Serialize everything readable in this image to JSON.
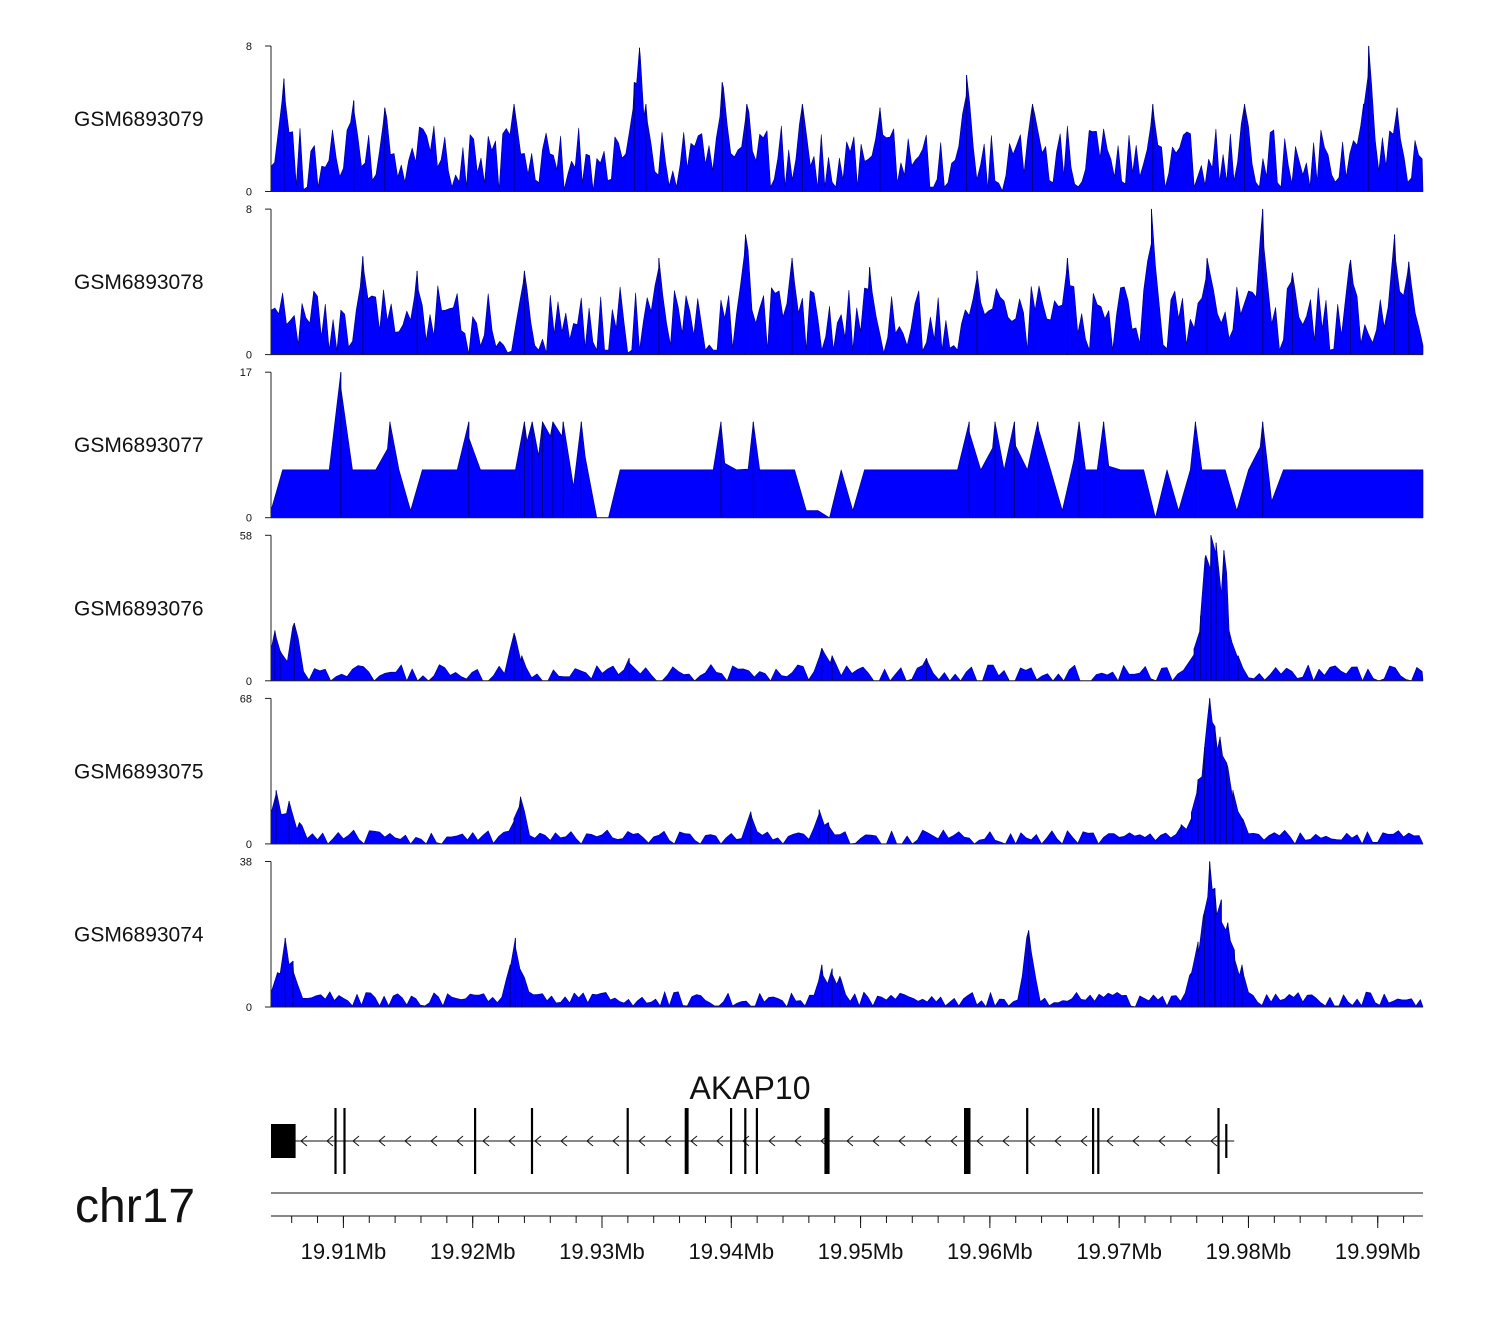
{
  "chart_data": {
    "type": "area",
    "chromosome": "chr17",
    "xlim": [
      19.9044,
      19.9935
    ],
    "x_unit": "Mb",
    "x_ticks": [
      19.91,
      19.92,
      19.93,
      19.94,
      19.95,
      19.96,
      19.97,
      19.98,
      19.99
    ],
    "x_tick_labels": [
      "19.91Mb",
      "19.92Mb",
      "19.93Mb",
      "19.94Mb",
      "19.95Mb",
      "19.96Mb",
      "19.97Mb",
      "19.98Mb",
      "19.99Mb"
    ],
    "fill_color": "#0000ff",
    "edge_color": "#000080",
    "tracks": [
      {
        "name": "GSM6893079",
        "ylim": [
          0,
          8
        ],
        "y_tick_labels": [
          "0",
          "8"
        ],
        "baseline": 0.25,
        "spacing_kb": 0.28,
        "density": 0.9,
        "level_low": 0.4,
        "level_high": 3.6,
        "peaks": [
          {
            "pos": 19.9054,
            "height": 6.2
          },
          {
            "pos": 19.9108,
            "height": 5.0
          },
          {
            "pos": 19.9132,
            "height": 4.6
          },
          {
            "pos": 19.9232,
            "height": 4.8
          },
          {
            "pos": 19.9329,
            "height": 7.9
          },
          {
            "pos": 19.9325,
            "height": 6.0
          },
          {
            "pos": 19.9334,
            "height": 4.8
          },
          {
            "pos": 19.9393,
            "height": 6.0
          },
          {
            "pos": 19.9412,
            "height": 4.8
          },
          {
            "pos": 19.9455,
            "height": 4.8
          },
          {
            "pos": 19.9515,
            "height": 4.6
          },
          {
            "pos": 19.9582,
            "height": 6.4
          },
          {
            "pos": 19.9633,
            "height": 4.8
          },
          {
            "pos": 19.9726,
            "height": 4.8
          },
          {
            "pos": 19.9797,
            "height": 4.8
          },
          {
            "pos": 19.9893,
            "height": 8.0
          },
          {
            "pos": 19.9889,
            "height": 4.8
          },
          {
            "pos": 19.9915,
            "height": 4.6
          }
        ]
      },
      {
        "name": "GSM6893078",
        "ylim": [
          0,
          8
        ],
        "y_tick_labels": [
          "0",
          "8"
        ],
        "baseline": 0.25,
        "spacing_kb": 0.3,
        "density": 0.9,
        "level_low": 0.5,
        "level_high": 3.8,
        "peaks": [
          {
            "pos": 19.9115,
            "height": 5.4
          },
          {
            "pos": 19.9157,
            "height": 4.6
          },
          {
            "pos": 19.924,
            "height": 4.6
          },
          {
            "pos": 19.9344,
            "height": 5.3
          },
          {
            "pos": 19.9411,
            "height": 6.6
          },
          {
            "pos": 19.9447,
            "height": 5.3
          },
          {
            "pos": 19.9507,
            "height": 4.8
          },
          {
            "pos": 19.959,
            "height": 4.6
          },
          {
            "pos": 19.966,
            "height": 5.3
          },
          {
            "pos": 19.9725,
            "height": 8.0
          },
          {
            "pos": 19.9768,
            "height": 5.3
          },
          {
            "pos": 19.9811,
            "height": 8.0
          },
          {
            "pos": 19.9834,
            "height": 4.5
          },
          {
            "pos": 19.9879,
            "height": 5.2
          },
          {
            "pos": 19.9913,
            "height": 6.6
          },
          {
            "pos": 19.9924,
            "height": 5.1
          }
        ]
      },
      {
        "name": "GSM6893077",
        "ylim": [
          0,
          17
        ],
        "y_tick_labels": [
          "0",
          "17"
        ],
        "baseline": 0.0,
        "spacing_kb": 0.9,
        "density": 0.95,
        "level_low": 5.6,
        "level_high": 5.6,
        "peaks": [
          {
            "pos": 19.9098,
            "height": 17.0
          },
          {
            "pos": 19.9136,
            "height": 11.2
          },
          {
            "pos": 19.9197,
            "height": 11.2
          },
          {
            "pos": 19.924,
            "height": 11.2
          },
          {
            "pos": 19.9246,
            "height": 11.2
          },
          {
            "pos": 19.9254,
            "height": 11.2
          },
          {
            "pos": 19.9262,
            "height": 11.2
          },
          {
            "pos": 19.927,
            "height": 11.2
          },
          {
            "pos": 19.9284,
            "height": 11.2
          },
          {
            "pos": 19.9392,
            "height": 11.2
          },
          {
            "pos": 19.9417,
            "height": 11.2
          },
          {
            "pos": 19.9584,
            "height": 11.2
          },
          {
            "pos": 19.9604,
            "height": 11.2
          },
          {
            "pos": 19.9619,
            "height": 11.2
          },
          {
            "pos": 19.9637,
            "height": 11.2
          },
          {
            "pos": 19.9669,
            "height": 11.2
          },
          {
            "pos": 19.9688,
            "height": 11.2
          },
          {
            "pos": 19.9759,
            "height": 11.2
          },
          {
            "pos": 19.9811,
            "height": 11.2
          }
        ]
      },
      {
        "name": "GSM6893076",
        "ylim": [
          0,
          58
        ],
        "y_tick_labels": [
          "0",
          "58"
        ],
        "baseline": 0.0,
        "spacing_kb": 0.42,
        "density": 0.8,
        "level_low": 1.5,
        "level_high": 6.5,
        "peaks": [
          {
            "pos": 19.9047,
            "height": 20.0
          },
          {
            "pos": 19.9062,
            "height": 23.0
          },
          {
            "pos": 19.9051,
            "height": 12.0
          },
          {
            "pos": 19.9232,
            "height": 19.0
          },
          {
            "pos": 19.9238,
            "height": 10.0
          },
          {
            "pos": 19.9321,
            "height": 9.0
          },
          {
            "pos": 19.947,
            "height": 13.0
          },
          {
            "pos": 19.9478,
            "height": 10.0
          },
          {
            "pos": 19.9551,
            "height": 9.0
          },
          {
            "pos": 19.9771,
            "height": 58.0
          },
          {
            "pos": 19.9775,
            "height": 55.0
          },
          {
            "pos": 19.9767,
            "height": 50.0
          },
          {
            "pos": 19.9781,
            "height": 52.0
          },
          {
            "pos": 19.9763,
            "height": 26.0
          },
          {
            "pos": 19.9785,
            "height": 20.0
          },
          {
            "pos": 19.9758,
            "height": 13.0
          },
          {
            "pos": 19.9792,
            "height": 10.0
          }
        ]
      },
      {
        "name": "GSM6893075",
        "ylim": [
          0,
          68
        ],
        "y_tick_labels": [
          "0",
          "68"
        ],
        "baseline": 0.0,
        "spacing_kb": 0.4,
        "density": 0.8,
        "level_low": 1.5,
        "level_high": 6.5,
        "peaks": [
          {
            "pos": 19.9048,
            "height": 25.0
          },
          {
            "pos": 19.9058,
            "height": 20.0
          },
          {
            "pos": 19.9066,
            "height": 10.0
          },
          {
            "pos": 19.9237,
            "height": 22.0
          },
          {
            "pos": 19.9232,
            "height": 12.0
          },
          {
            "pos": 19.9415,
            "height": 15.0
          },
          {
            "pos": 19.9468,
            "height": 16.0
          },
          {
            "pos": 19.9475,
            "height": 10.0
          },
          {
            "pos": 19.977,
            "height": 68.0
          },
          {
            "pos": 19.9774,
            "height": 55.0
          },
          {
            "pos": 19.9778,
            "height": 50.0
          },
          {
            "pos": 19.9766,
            "height": 45.0
          },
          {
            "pos": 19.9783,
            "height": 38.0
          },
          {
            "pos": 19.9761,
            "height": 30.0
          },
          {
            "pos": 19.9788,
            "height": 25.0
          },
          {
            "pos": 19.9756,
            "height": 15.0
          },
          {
            "pos": 19.9795,
            "height": 12.0
          },
          {
            "pos": 19.9748,
            "height": 9.0
          }
        ]
      },
      {
        "name": "GSM6893074",
        "ylim": [
          0,
          38
        ],
        "y_tick_labels": [
          "0",
          "38"
        ],
        "baseline": 0.3,
        "spacing_kb": 0.35,
        "density": 0.85,
        "level_low": 1.0,
        "level_high": 4.0,
        "peaks": [
          {
            "pos": 19.9055,
            "height": 18.0
          },
          {
            "pos": 19.9049,
            "height": 9.0
          },
          {
            "pos": 19.9061,
            "height": 12.0
          },
          {
            "pos": 19.9233,
            "height": 18.0
          },
          {
            "pos": 19.9229,
            "height": 11.0
          },
          {
            "pos": 19.9238,
            "height": 9.0
          },
          {
            "pos": 19.947,
            "height": 11.0
          },
          {
            "pos": 19.9478,
            "height": 10.0
          },
          {
            "pos": 19.9484,
            "height": 8.0
          },
          {
            "pos": 19.963,
            "height": 20.0
          },
          {
            "pos": 19.977,
            "height": 38.0
          },
          {
            "pos": 19.9774,
            "height": 31.0
          },
          {
            "pos": 19.9779,
            "height": 28.0
          },
          {
            "pos": 19.9766,
            "height": 25.0
          },
          {
            "pos": 19.9784,
            "height": 22.0
          },
          {
            "pos": 19.9761,
            "height": 17.0
          },
          {
            "pos": 19.9789,
            "height": 15.0
          },
          {
            "pos": 19.9795,
            "height": 11.0
          },
          {
            "pos": 19.9756,
            "height": 9.0
          }
        ]
      }
    ],
    "gene": {
      "name": "AKAP10",
      "strand": "-",
      "start": 19.9044,
      "end": 19.9789,
      "exons": [
        {
          "start": 19.9044,
          "end": 19.9063,
          "thick": true
        },
        {
          "start": 19.9093,
          "end": 19.9094
        },
        {
          "start": 19.91,
          "end": 19.9101
        },
        {
          "start": 19.9201,
          "end": 19.9202
        },
        {
          "start": 19.9245,
          "end": 19.9246
        },
        {
          "start": 19.9319,
          "end": 19.932
        },
        {
          "start": 19.9364,
          "end": 19.9367,
          "thick": true
        },
        {
          "start": 19.9399,
          "end": 19.94
        },
        {
          "start": 19.941,
          "end": 19.9411
        },
        {
          "start": 19.9419,
          "end": 19.942
        },
        {
          "start": 19.9472,
          "end": 19.9476,
          "thick": true
        },
        {
          "start": 19.958,
          "end": 19.9585,
          "thick": true
        },
        {
          "start": 19.9628,
          "end": 19.9629
        },
        {
          "start": 19.9679,
          "end": 19.968
        },
        {
          "start": 19.9683,
          "end": 19.9684
        },
        {
          "start": 19.9776,
          "end": 19.9777
        },
        {
          "start": 19.9782,
          "end": 19.9783,
          "short": true
        }
      ]
    }
  }
}
